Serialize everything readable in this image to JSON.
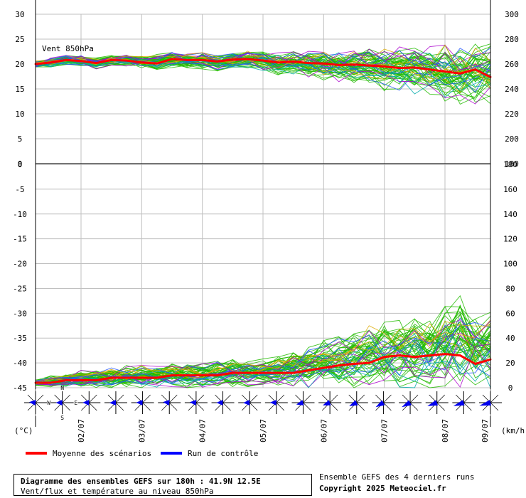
{
  "chart_data": [
    {
      "type": "line",
      "panel": "wind",
      "annotation": "Vent 850hPa",
      "ylim": [
        0,
        30
      ],
      "yticks": [
        0,
        5,
        10,
        15,
        20,
        25,
        30
      ],
      "ylim_right": [
        180,
        300
      ],
      "yticks_right": [
        180,
        200,
        220,
        240,
        260,
        280,
        300
      ],
      "x_step_hours": 6,
      "x": [
        0,
        6,
        12,
        18,
        24,
        30,
        36,
        42,
        48,
        54,
        60,
        66,
        72,
        78,
        84,
        90,
        96,
        102,
        108,
        114,
        120,
        126,
        132,
        138,
        144,
        150,
        156,
        162,
        168,
        174,
        180
      ],
      "series": [
        {
          "name": "Moyenne des scénarios",
          "color": "#ff0000",
          "values": [
            20,
            20.3,
            20.8,
            20.6,
            20.2,
            20.8,
            20.7,
            20.3,
            20.1,
            21,
            20.8,
            20.8,
            20.5,
            20.9,
            21,
            20.7,
            20.3,
            20.5,
            20.2,
            20.1,
            19.8,
            19.9,
            19.7,
            19.5,
            19.2,
            19.3,
            18.9,
            18.5,
            18.1,
            18.9,
            17.4
          ]
        }
      ],
      "spread": {
        "upper": [
          20.8,
          21.2,
          21.8,
          21.8,
          21.3,
          21.8,
          21.8,
          21.7,
          22,
          22.5,
          22.2,
          22.3,
          22,
          22.5,
          22.6,
          22.6,
          22.3,
          22.6,
          22.6,
          22.7,
          22.8,
          23,
          23.1,
          23.2,
          23.5,
          23.8,
          23.5,
          23.8,
          23.5,
          24,
          24.5
        ],
        "lower": [
          19.2,
          19.4,
          19.8,
          19.4,
          19,
          19.6,
          19.6,
          19.1,
          18.6,
          19.3,
          19,
          19,
          18.6,
          18.8,
          19.2,
          18.7,
          17.6,
          17.9,
          17.2,
          16.8,
          16.3,
          16,
          15.5,
          14.6,
          14.2,
          14,
          13.8,
          12.5,
          11.3,
          11.8,
          11.5
        ]
      }
    },
    {
      "type": "line",
      "panel": "temperature",
      "ylim": [
        -45,
        0
      ],
      "yticks": [
        -45,
        -40,
        -35,
        -30,
        -25,
        -20,
        -15,
        -10,
        -5,
        0
      ],
      "ylim_right": [
        0,
        180
      ],
      "yticks_right": [
        0,
        20,
        40,
        60,
        80,
        100,
        120,
        140,
        160,
        180
      ],
      "unit_left": "(°C)",
      "unit_right": "(km/h)",
      "x_step_hours": 6,
      "x": [
        0,
        6,
        12,
        18,
        24,
        30,
        36,
        42,
        48,
        54,
        60,
        66,
        72,
        78,
        84,
        90,
        96,
        102,
        108,
        114,
        120,
        126,
        132,
        138,
        144,
        150,
        156,
        162,
        168,
        174,
        180
      ],
      "series": [
        {
          "name": "Moyenne des scénarios",
          "color": "#ff0000",
          "values": [
            -44,
            -44,
            -43.5,
            -43.5,
            -43.5,
            -43,
            -43,
            -43,
            -43,
            -42.5,
            -42.5,
            -42.5,
            -42.5,
            -42,
            -42,
            -42,
            -42,
            -42,
            -41.5,
            -41,
            -40.5,
            -40.2,
            -40,
            -38.8,
            -38.5,
            -38.8,
            -38.5,
            -38.2,
            -38.5,
            -40.2,
            -39.3
          ]
        }
      ],
      "spread": {
        "upper": [
          -43,
          -42.5,
          -42,
          -41.5,
          -41.5,
          -41,
          -40.5,
          -40.5,
          -40.5,
          -40,
          -40,
          -40,
          -39.5,
          -39,
          -39.5,
          -39,
          -38.5,
          -37.5,
          -36.5,
          -35.5,
          -34.5,
          -34,
          -32.5,
          -31.5,
          -31,
          -30.5,
          -30,
          -27,
          -26,
          -29.5,
          -28.5
        ],
        "lower": [
          -45,
          -45,
          -45,
          -45,
          -45,
          -45,
          -45,
          -45,
          -45,
          -45,
          -45,
          -45,
          -45,
          -45,
          -45,
          -45,
          -45,
          -45,
          -45,
          -45,
          -45,
          -45,
          -45,
          -45,
          -45,
          -45,
          -45,
          -45,
          -45,
          -45,
          -45
        ]
      }
    }
  ],
  "x_axis": {
    "tick_labels": [
      "02/07",
      "03/07",
      "04/07",
      "05/07",
      "06/07",
      "07/07",
      "08/07",
      "09/07"
    ],
    "tick_hours": [
      18,
      42,
      66,
      90,
      114,
      138,
      162,
      186
    ]
  },
  "compass": {
    "labels": {
      "n": "N",
      "s": "S",
      "e": "E",
      "w": "W"
    },
    "wind_from_deg": [
      275,
      270,
      272,
      268,
      272,
      276,
      274,
      270,
      268,
      272,
      255,
      250,
      245,
      240,
      242,
      250,
      252,
      255
    ]
  },
  "legend": {
    "mean_label": "Moyenne des scénarios",
    "mean_color": "#ff0000",
    "control_label": "Run de contrôle",
    "control_color": "#0000ff"
  },
  "info": {
    "title": "Diagramme des ensembles GEFS sur 180h : 41.9N 12.5E",
    "subtitle": "Vent/flux et température au niveau 850hPa"
  },
  "credit": {
    "line1": "Ensemble GEFS des 4 derniers runs",
    "line2": "Copyright 2025 Meteociel.fr"
  },
  "colors": {
    "grid": "#c0c0c0",
    "ensemble_primary": "#22bb00",
    "ensemble_secondary": [
      "#aa00cc",
      "#2255ff",
      "#ddaa00",
      "#00aaaa"
    ]
  }
}
